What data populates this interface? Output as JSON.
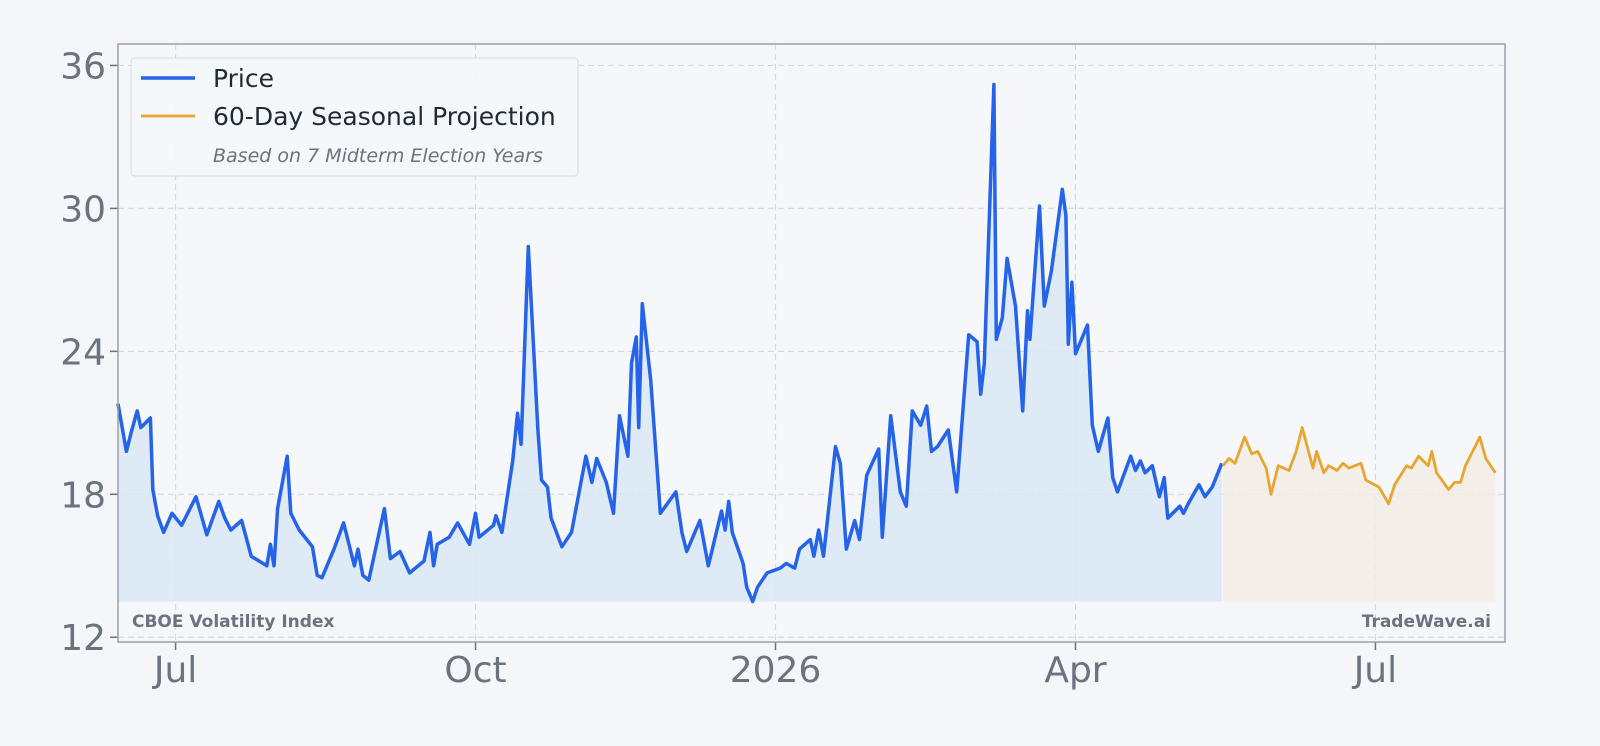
{
  "chart_data": {
    "type": "line",
    "legend": "upper left",
    "grid": true,
    "xlim": [
      2025.452,
      2026.608
    ],
    "xticks": [
      {
        "value": 2025.5,
        "label": "Jul"
      },
      {
        "value": 2025.75,
        "label": "Oct"
      },
      2026,
      {
        "value": 2026.25,
        "label": "Apr"
      },
      {
        "value": 2026.5,
        "label": "Jul"
      }
    ],
    "ylim": [
      11.8,
      36.9
    ],
    "yticks": [
      12,
      18,
      24,
      30,
      36
    ],
    "legend_note": "Based on 7 Midterm Election Years",
    "annotations": [
      "CBOE Volatility Index",
      "TradeWave.ai"
    ],
    "series": [
      {
        "name": "Price",
        "color": "#2563eb",
        "fill": "#dbe8f6",
        "x": [
          2025.452,
          2025.459,
          2025.463,
          2025.468,
          2025.471,
          2025.479,
          2025.481,
          2025.485,
          2025.49,
          2025.497,
          2025.505,
          2025.517,
          2025.526,
          2025.536,
          2025.541,
          2025.546,
          2025.555,
          2025.563,
          2025.576,
          2025.579,
          2025.582,
          2025.585,
          2025.593,
          2025.596,
          2025.603,
          2025.614,
          2025.618,
          2025.622,
          2025.632,
          2025.64,
          2025.649,
          2025.652,
          2025.656,
          2025.661,
          2025.674,
          2025.679,
          2025.687,
          2025.695,
          2025.707,
          2025.712,
          2025.715,
          2025.718,
          2025.728,
          2025.735,
          2025.745,
          2025.75,
          2025.753,
          2025.765,
          2025.767,
          2025.772,
          2025.781,
          2025.785,
          2025.788,
          2025.794,
          2025.802,
          2025.805,
          2025.81,
          2025.813,
          2025.822,
          2025.83,
          2025.842,
          2025.847,
          2025.851,
          2025.859,
          2025.865,
          2025.87,
          2025.877,
          2025.88,
          2025.884,
          2025.886,
          2025.889,
          2025.896,
          2025.904,
          2025.917,
          2025.922,
          2025.926,
          2025.937,
          2025.944,
          2025.955,
          2025.958,
          2025.961,
          2025.964,
          2025.973,
          2025.976,
          2025.981,
          2025.985,
          2025.993,
          2026.004,
          2026.009,
          2026.016,
          2026.02,
          2026.029,
          2026.032,
          2026.036,
          2026.04,
          2026.05,
          2026.054,
          2026.059,
          2026.066,
          2026.07,
          2026.076,
          2026.086,
          2026.089,
          2026.096,
          2026.104,
          2026.109,
          2026.114,
          2026.121,
          2026.126,
          2026.13,
          2026.135,
          2026.144,
          2026.151,
          2026.161,
          2026.168,
          2026.171,
          2026.174,
          2026.182,
          2026.184,
          2026.189,
          2026.193,
          2026.2,
          2026.206,
          2026.21,
          2026.212,
          2026.22,
          2026.224,
          2026.23,
          2026.239,
          2026.242,
          2026.244,
          2026.247,
          2026.25,
          2026.26,
          2026.264,
          2026.269,
          2026.277,
          2026.281,
          2026.285,
          2026.296,
          2026.3,
          2026.304,
          2026.308,
          2026.314,
          2026.32,
          2026.324,
          2026.327,
          2026.337,
          2026.34,
          2026.344,
          2026.353,
          2026.358,
          2026.364,
          2026.372
        ],
        "values": [
          21.8,
          19.8,
          20.6,
          21.5,
          20.8,
          21.2,
          18.2,
          17.1,
          16.4,
          17.2,
          16.7,
          17.9,
          16.3,
          17.7,
          17.0,
          16.5,
          16.9,
          15.4,
          15.0,
          15.9,
          15.0,
          17.4,
          19.6,
          17.2,
          16.5,
          15.8,
          14.6,
          14.5,
          15.7,
          16.8,
          15.0,
          15.7,
          14.6,
          14.4,
          17.4,
          15.3,
          15.6,
          14.7,
          15.2,
          16.4,
          15.0,
          15.9,
          16.2,
          16.8,
          15.9,
          17.2,
          16.2,
          16.7,
          17.1,
          16.4,
          19.4,
          21.4,
          20.1,
          28.4,
          20.7,
          18.6,
          18.3,
          17.0,
          15.8,
          16.4,
          19.6,
          18.5,
          19.5,
          18.5,
          17.2,
          21.3,
          19.6,
          23.5,
          24.6,
          20.8,
          26.0,
          22.8,
          17.2,
          18.1,
          16.4,
          15.6,
          16.9,
          15.0,
          17.3,
          16.5,
          17.7,
          16.4,
          15.1,
          14.1,
          13.5,
          14.1,
          14.7,
          14.9,
          15.1,
          14.9,
          15.7,
          16.1,
          15.4,
          16.5,
          15.4,
          20.0,
          19.3,
          15.7,
          16.9,
          16.1,
          18.8,
          19.9,
          16.2,
          21.3,
          18.1,
          17.5,
          21.5,
          20.9,
          21.7,
          19.8,
          20.0,
          20.7,
          18.1,
          24.7,
          24.4,
          22.2,
          23.5,
          35.2,
          24.5,
          25.4,
          27.9,
          25.9,
          21.5,
          25.7,
          24.5,
          30.1,
          25.9,
          27.4,
          30.8,
          29.7,
          24.3,
          26.9,
          23.9,
          25.1,
          20.9,
          19.8,
          21.2,
          18.7,
          18.1,
          19.6,
          19.0,
          19.4,
          18.9,
          19.2,
          17.9,
          18.7,
          17.0,
          17.5,
          17.2,
          17.6,
          18.4,
          17.9,
          18.3,
          19.3
        ]
      },
      {
        "name": "60-Day Seasonal Projection",
        "color": "#e8a530",
        "fill": "#f2ece3",
        "x": [
          2026.373,
          2026.378,
          2026.383,
          2026.391,
          2026.397,
          2026.402,
          2026.409,
          2026.413,
          2026.419,
          2026.428,
          2026.434,
          2026.439,
          2026.448,
          2026.451,
          2026.457,
          2026.461,
          2026.468,
          2026.473,
          2026.478,
          2026.488,
          2026.492,
          2026.503,
          2026.511,
          2026.516,
          2026.526,
          2026.53,
          2026.536,
          2026.544,
          2026.547,
          2026.551,
          2026.561,
          2026.566,
          2026.571,
          2026.575,
          2026.587,
          2026.592,
          2026.6
        ],
        "values": [
          19.2,
          19.5,
          19.3,
          20.4,
          19.7,
          19.8,
          19.1,
          18.0,
          19.2,
          19.0,
          19.8,
          20.8,
          19.1,
          19.8,
          18.9,
          19.2,
          19.0,
          19.3,
          19.1,
          19.3,
          18.6,
          18.3,
          17.6,
          18.4,
          19.2,
          19.1,
          19.6,
          19.2,
          19.8,
          18.9,
          18.2,
          18.5,
          18.5,
          19.2,
          20.4,
          19.5,
          18.9
        ]
      }
    ]
  }
}
